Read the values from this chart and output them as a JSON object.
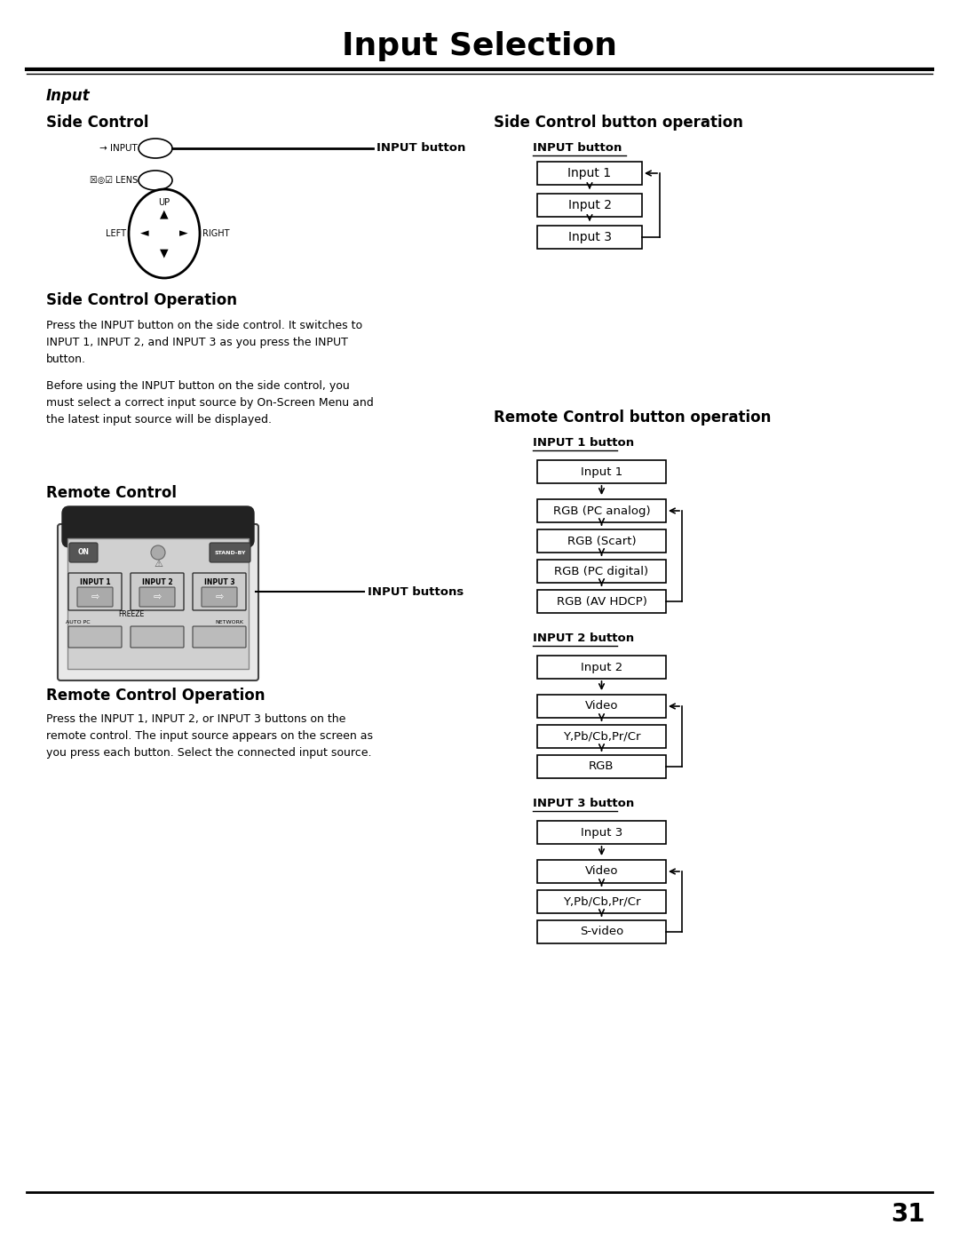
{
  "title": "Input Selection",
  "page_num": "31",
  "bg_color": "#ffffff",
  "section_italic": "Input",
  "side_control_label": "Side Control",
  "side_ctrl_btn_op_label": "Side Control button operation",
  "input_button_label": "INPUT button",
  "input_buttons_label": "INPUT buttons",
  "side_ctrl_op_title": "Side Control Operation",
  "side_ctrl_op_text1": "Press the INPUT button on the side control. It switches to\nINPUT 1, INPUT 2, and INPUT 3 as you press the INPUT\nbutton.",
  "side_ctrl_op_text2": "Before using the INPUT button on the side control, you\nmust select a correct input source by On-Screen Menu and\nthe latest input source will be displayed.",
  "remote_ctrl_label": "Remote Control",
  "remote_ctrl_op_title": "Remote Control Operation",
  "remote_ctrl_op_text": "Press the INPUT 1, INPUT 2, or INPUT 3 buttons on the\nremote control. The input source appears on the screen as\nyou press each button. Select the connected input source.",
  "remote_ctrl_btn_op_label": "Remote Control button operation",
  "input1_btn_label": "INPUT 1 button",
  "input2_btn_label": "INPUT 2 button",
  "input3_btn_label": "INPUT 3 button",
  "side_boxes": [
    "Input 1",
    "Input 2",
    "Input 3"
  ],
  "input1_boxes": [
    "Input 1",
    "RGB (PC analog)",
    "RGB (Scart)",
    "RGB (PC digital)",
    "RGB (AV HDCP)"
  ],
  "input2_boxes": [
    "Input 2",
    "Video",
    "Y,Pb/Cb,Pr/Cr",
    "RGB"
  ],
  "input3_boxes": [
    "Input 3",
    "Video",
    "Y,Pb/Cb,Pr/Cr",
    "S-video"
  ],
  "fig_w": 10.8,
  "fig_h": 13.97,
  "dpi": 100
}
